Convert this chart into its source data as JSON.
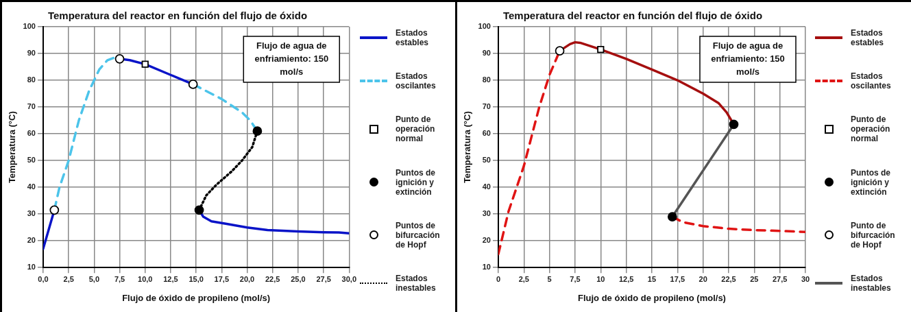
{
  "chart_data": [
    {
      "type": "line",
      "title": "Temperatura del reactor en función del flujo de óxido",
      "xlabel": "Flujo de óxido de propileno (mol/s)",
      "ylabel": "Temperatura (°C)",
      "xlim": [
        0,
        30
      ],
      "xticks": [
        {
          "value": 0,
          "label": "0,0"
        },
        {
          "value": 2.5,
          "label": "2,5"
        },
        {
          "value": 5,
          "label": "5,0"
        },
        {
          "value": 7.5,
          "label": "7,5"
        },
        {
          "value": 10,
          "label": "10,0"
        },
        {
          "value": 12.5,
          "label": "12,5"
        },
        {
          "value": 15,
          "label": "15,0"
        },
        {
          "value": 17.5,
          "label": "17,5"
        },
        {
          "value": 20,
          "label": "20,0"
        },
        {
          "value": 22.5,
          "label": "22,5"
        },
        {
          "value": 25,
          "label": "25,0"
        },
        {
          "value": 27.5,
          "label": "27,5"
        },
        {
          "value": 30,
          "label": "30,0"
        }
      ],
      "ylim": [
        10,
        100
      ],
      "yticks": [
        10,
        20,
        30,
        40,
        50,
        60,
        70,
        80,
        90,
        100
      ],
      "grid": true,
      "legend": "right",
      "annotations": [
        "Flujo de agua de enfriamiento: 150 mol/s"
      ],
      "series": [
        {
          "name": "Estados estables",
          "line_style": "solid",
          "color": "#0a14c8",
          "x": [
            0,
            1.1,
            4,
            7.5,
            8.5,
            10,
            12.5,
            14.7,
            15,
            15.3,
            15.7,
            16.5,
            18,
            20,
            22,
            25,
            27.5,
            29,
            30
          ],
          "values": [
            17,
            31.5,
            null,
            88,
            87.5,
            86,
            82,
            78.5,
            null,
            31.5,
            29,
            27.3,
            26.3,
            25,
            24,
            23.5,
            23.2,
            23.1,
            22.8
          ]
        },
        {
          "name": "Estados oscilantes",
          "line_style": "dashed",
          "color": "#4cc4ea",
          "x": [
            1.1,
            1.6,
            2.5,
            3.5,
            4.5,
            5,
            5.5,
            6.3,
            7,
            7.5,
            10,
            14.7,
            17.5,
            19.5,
            20.3,
            21
          ],
          "values": [
            31.5,
            40,
            50,
            65,
            76,
            80,
            84,
            87.5,
            88.5,
            88,
            null,
            78.5,
            73,
            68,
            65,
            61
          ]
        },
        {
          "name": "Punto de operación normal",
          "type": "scatter",
          "marker": "square",
          "color": "#ffffff",
          "x": [
            10
          ],
          "values": [
            86
          ]
        },
        {
          "name": "Puntos de ignición y extinción",
          "type": "scatter",
          "marker": "circle",
          "color": "#000000",
          "x": [
            21,
            15.3
          ],
          "values": [
            61,
            31.5
          ]
        },
        {
          "name": "Puntos de bifurcación de Hopf",
          "type": "scatter",
          "marker": "circle",
          "color": "#ffffff",
          "x": [
            1.1,
            7.5,
            14.7
          ],
          "values": [
            31.5,
            88,
            78.5
          ]
        },
        {
          "name": "Estados inestables",
          "line_style": "dotted",
          "color": "#000000",
          "x": [
            21,
            20.5,
            19.5,
            18.5,
            17,
            16,
            15.3
          ],
          "values": [
            61,
            55,
            50,
            46,
            41,
            37,
            31.5
          ]
        }
      ]
    },
    {
      "type": "line",
      "title": "Temperatura del reactor en función del flujo de óxido",
      "xlabel": "Flujo de óxido de propileno (mol/s)",
      "ylabel": "Temperatura (°C)",
      "xlim": [
        0,
        30
      ],
      "xticks": [
        0,
        {
          "value": 2.5,
          "label": "2,5"
        },
        5,
        {
          "value": 7.5,
          "label": "7,5"
        },
        10,
        {
          "value": 12.5,
          "label": "12,5"
        },
        15,
        {
          "value": 17.5,
          "label": "17,5"
        },
        20,
        {
          "value": 22.5,
          "label": "22,5"
        },
        25,
        {
          "value": 27.5,
          "label": "27,5"
        },
        30
      ],
      "ylim": [
        10,
        100
      ],
      "yticks": [
        10,
        20,
        30,
        40,
        50,
        60,
        70,
        80,
        90,
        100
      ],
      "grid": true,
      "legend": "right",
      "annotations": [
        "Flujo de agua de enfriamiento: 150 mol/s"
      ],
      "series": [
        {
          "name": "Estados estables",
          "line_style": "solid",
          "color": "#a50f0f",
          "x": [
            6,
            7,
            7.5,
            8,
            10,
            12.5,
            15,
            17.5,
            20,
            21.5,
            22.3,
            23
          ],
          "values": [
            91,
            93.5,
            94.2,
            94,
            91.5,
            88,
            84,
            80,
            75,
            71.5,
            68,
            63.5
          ]
        },
        {
          "name": "Estados oscilantes",
          "line_style": "dashed",
          "color": "#e01414",
          "x": [
            0,
            1,
            2.5,
            4,
            5,
            6,
            10,
            17,
            18,
            20,
            22.5,
            25,
            27.5,
            30
          ],
          "values": [
            15,
            31,
            48,
            70,
            82,
            91,
            null,
            29,
            27,
            25.5,
            24.5,
            24,
            23.7,
            23.3
          ]
        },
        {
          "name": "Punto de operación normal",
          "type": "scatter",
          "marker": "square",
          "color": "#ffffff",
          "x": [
            10
          ],
          "values": [
            91.5
          ]
        },
        {
          "name": "Puntos de ignición y extinción",
          "type": "scatter",
          "marker": "circle",
          "color": "#000000",
          "x": [
            23,
            17
          ],
          "values": [
            63.5,
            29
          ]
        },
        {
          "name": "Punto de bifurcación de Hopf",
          "type": "scatter",
          "marker": "circle",
          "color": "#ffffff",
          "x": [
            6
          ],
          "values": [
            91
          ]
        },
        {
          "name": "Estados inestables",
          "line_style": "solid",
          "color": "#555555",
          "x": [
            23,
            17
          ],
          "values": [
            63.5,
            29
          ]
        }
      ]
    }
  ]
}
